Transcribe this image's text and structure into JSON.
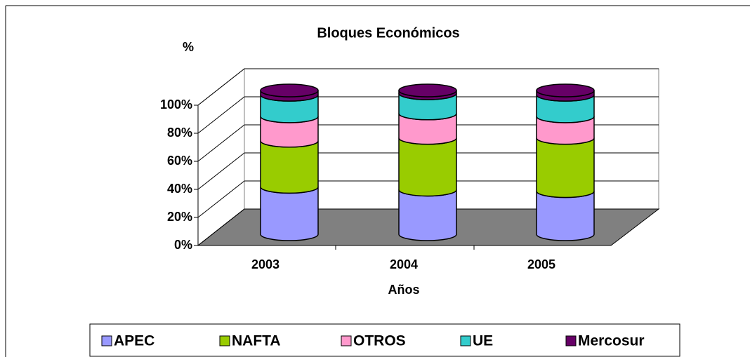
{
  "chart_data": {
    "type": "bar",
    "stacked": true,
    "title": "Bloques Económicos",
    "y_label": "%",
    "x_label": "Años",
    "categories": [
      "2003",
      "2004",
      "2005"
    ],
    "series": [
      {
        "name": "APEC",
        "color": "#9999ff",
        "values": [
          33,
          31,
          30
        ]
      },
      {
        "name": "NAFTA",
        "color": "#99cc00",
        "values": [
          32,
          36,
          37
        ]
      },
      {
        "name": "OTROS",
        "color": "#ff99cc",
        "values": [
          17,
          17,
          15
        ]
      },
      {
        "name": "UE",
        "color": "#33cccc",
        "values": [
          15,
          14,
          15
        ]
      },
      {
        "name": "Mercosur",
        "color": "#660066",
        "values": [
          3,
          2,
          3
        ]
      }
    ],
    "ylim": [
      0,
      100
    ],
    "yticks": [
      {
        "value": 0,
        "label": "0%"
      },
      {
        "value": 20,
        "label": "20%"
      },
      {
        "value": 40,
        "label": "40%"
      },
      {
        "value": 60,
        "label": "60%"
      },
      {
        "value": 80,
        "label": "80%"
      },
      {
        "value": 100,
        "label": "100%"
      }
    ],
    "grid": true,
    "legend": "bottom"
  }
}
